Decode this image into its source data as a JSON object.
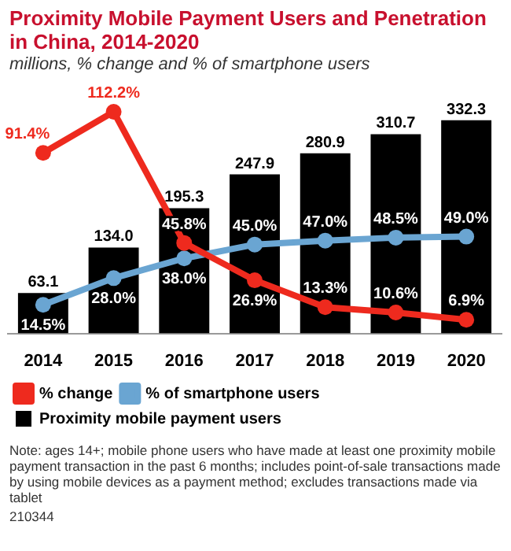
{
  "chart_data": {
    "type": "bar",
    "title": "Proximity Mobile Payment Users and Penetration in China, 2014-2020",
    "subtitle": "millions, % change and % of smartphone users",
    "categories": [
      "2014",
      "2015",
      "2016",
      "2017",
      "2018",
      "2019",
      "2020"
    ],
    "series": [
      {
        "name": "Proximity mobile payment users",
        "color": "#000000",
        "values": [
          63.1,
          134.0,
          195.3,
          247.9,
          280.9,
          310.7,
          332.3
        ],
        "value_labels": [
          "63.1",
          "134.0",
          "195.3",
          "247.9",
          "280.9",
          "310.7",
          "332.3"
        ]
      },
      {
        "name": "% change",
        "type": "line",
        "axis": "y2",
        "color": "#ee2a1e",
        "values": [
          91.4,
          112.2,
          45.8,
          26.9,
          13.3,
          10.6,
          6.9
        ],
        "value_labels": [
          "91.4%",
          "112.2%",
          "45.8%",
          "26.9%",
          "13.3%",
          "10.6%",
          "6.9%"
        ]
      },
      {
        "name": "% of smartphone users",
        "type": "line",
        "axis": "y2",
        "color": "#6aa5d2",
        "values": [
          14.5,
          28.0,
          38.0,
          45.0,
          47.0,
          48.5,
          49.0
        ],
        "value_labels": [
          "14.5%",
          "28.0%",
          "38.0%",
          "45.0%",
          "47.0%",
          "48.5%",
          "49.0%"
        ]
      }
    ],
    "marker": "circle",
    "line_style": "solid",
    "legend": "bottom",
    "tick_labels": "x",
    "annotations": [
      "Note: ages 14+; mobile phone users who have made at least one proximity mobile payment transaction in the past 6 months; includes point-of-sale transactions made by using mobile devices as a payment method; excludes transactions made via tablet",
      "210344"
    ]
  }
}
